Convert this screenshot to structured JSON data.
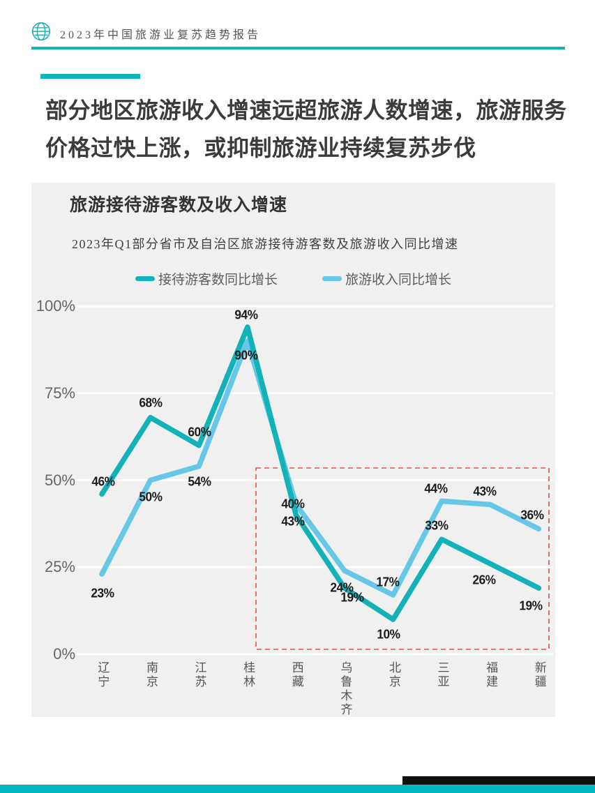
{
  "page": {
    "header": {
      "report_title": "2023年中国旅游业复苏趋势报告"
    },
    "headline": {
      "line1": "部分地区旅游收入增速远超旅游人数增速，旅游服务",
      "line2": "价格过快上涨，或抑制旅游业持续复苏步伐"
    },
    "colors": {
      "accent_teal": "#10b5bc",
      "series_teal": "#13b2b8",
      "series_blue": "#66c8e6",
      "highlight_red": "#e0514f",
      "panel_bg": "#f0f0f0",
      "footer_black": "#111111",
      "footer_teal": "#00b8c0"
    }
  },
  "chart_data": {
    "type": "line",
    "title": "旅游接待游客数及收入增速",
    "subtitle": "2023年Q1部分省市及自治区旅游接待游客数及旅游收入同比增速",
    "categories": [
      "辽宁",
      "南京",
      "江苏",
      "桂林",
      "西藏",
      "乌鲁木齐",
      "北京",
      "三亚",
      "福建",
      "新疆"
    ],
    "series": [
      {
        "key": "visitors",
        "name": "接待游客数同比增长",
        "color": "#13b2b8",
        "values": [
          46,
          68,
          60,
          94,
          40,
          19,
          10,
          33,
          26,
          19
        ],
        "labels": [
          "46%",
          "68%",
          "60%",
          "94%",
          "40%",
          "19%",
          "10%",
          "33%",
          "26%",
          "19%"
        ],
        "label_offsets": [
          [
            2,
            -17
          ],
          [
            0,
            -21
          ],
          [
            1,
            -19
          ],
          [
            -2,
            -17
          ],
          [
            -4,
            -15
          ],
          [
            11,
            14
          ],
          [
            -7,
            22
          ],
          [
            -7,
            -19
          ],
          [
            -9,
            24
          ],
          [
            -11,
            26
          ]
        ]
      },
      {
        "key": "revenue",
        "name": "旅游收入同比增长",
        "color": "#66c8e6",
        "values": [
          23,
          50,
          54,
          90,
          43,
          24,
          17,
          44,
          43,
          36
        ],
        "labels": [
          "23%",
          "50%",
          "54%",
          "90%",
          "43%",
          "24%",
          "17%",
          "44%",
          "43%",
          "36%"
        ],
        "label_offsets": [
          [
            1,
            28
          ],
          [
            0,
            24
          ],
          [
            1,
            22
          ],
          [
            -2,
            21
          ],
          [
            -4,
            25
          ],
          [
            -4,
            25
          ],
          [
            -8,
            -18
          ],
          [
            -8,
            -17
          ],
          [
            -8,
            -18
          ],
          [
            -9,
            -19
          ]
        ]
      }
    ],
    "y_ticks": [
      "100%",
      "75%",
      "50%",
      "25%",
      "0%"
    ],
    "y_tick_values": [
      100,
      75,
      50,
      25,
      0
    ],
    "ylim": [
      0,
      100
    ],
    "grid": "horizontal-white",
    "legend_position": "top-center",
    "highlight_box": {
      "from_category": "西藏",
      "to_category": "新疆",
      "style": "red-dashed"
    }
  }
}
